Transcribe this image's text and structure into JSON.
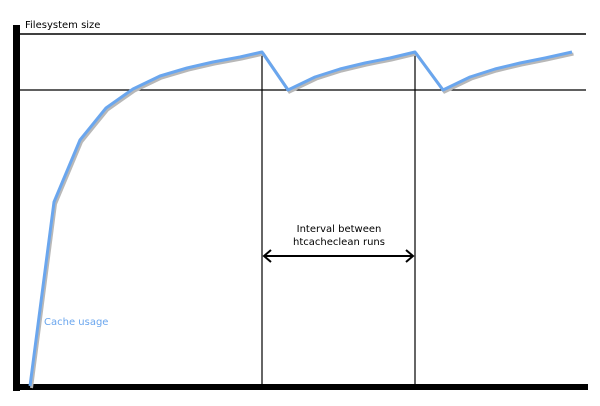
{
  "diagram": {
    "y_axis_label": "Filesystem size",
    "series_label": "Cache usage",
    "annotation_line1": "Interval between",
    "annotation_line2": "htcacheclean runs",
    "colors": {
      "curve": "#6aa6ee",
      "shadow": "#b0b0b0",
      "lines": "#000000"
    }
  }
}
